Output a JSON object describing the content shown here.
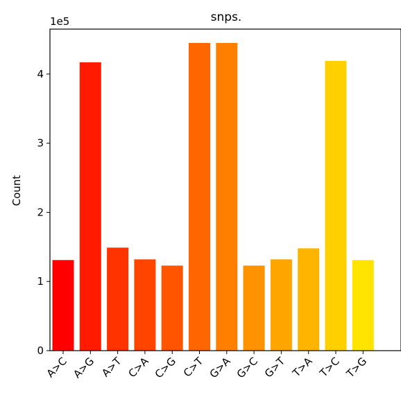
{
  "chart_data": {
    "type": "bar",
    "title": "snps.",
    "xlabel": "",
    "ylabel": "Count",
    "y_multiplier_label": "1e5",
    "y_scale_factor": 100000,
    "ylim": [
      0,
      465000
    ],
    "y_ticks": [
      0,
      100000,
      200000,
      300000,
      400000
    ],
    "y_tick_labels": [
      "0",
      "1",
      "2",
      "3",
      "4"
    ],
    "categories": [
      "A>C",
      "A>G",
      "A>T",
      "C>A",
      "C>G",
      "C>T",
      "G>A",
      "G>C",
      "G>T",
      "T>A",
      "T>C",
      "T>G"
    ],
    "values": [
      131000,
      417000,
      149000,
      132000,
      123000,
      445000,
      445000,
      123000,
      132000,
      148000,
      419000,
      131000
    ],
    "colors": [
      "#ff0000",
      "#ff1a00",
      "#ff3300",
      "#ff4400",
      "#ff5500",
      "#ff6600",
      "#ff8000",
      "#ff9200",
      "#ffa500",
      "#ffb500",
      "#ffd000",
      "#ffe400"
    ],
    "grid": false,
    "legend": "none"
  }
}
